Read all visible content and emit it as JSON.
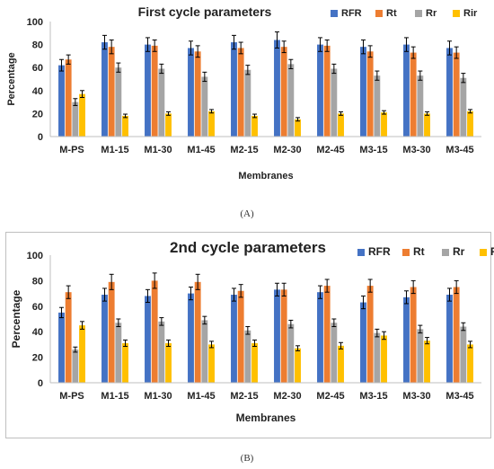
{
  "chart_data": [
    {
      "type": "bar",
      "title": "First cycle parameters",
      "xlabel": "Membranes",
      "ylabel": "Percentage",
      "ylim": [
        0,
        100
      ],
      "yticks": [
        0,
        20,
        40,
        60,
        80,
        100
      ],
      "grid": false,
      "legend": "top-right",
      "error_bars": true,
      "categories": [
        "M-PS",
        "M1-15",
        "M1-30",
        "M1-45",
        "M2-15",
        "M2-30",
        "M2-45",
        "M3-15",
        "M3-30",
        "M3-45"
      ],
      "series": [
        {
          "name": "RFR",
          "color": "#4472C4",
          "values": [
            62,
            82,
            80,
            77,
            82,
            84,
            80,
            78,
            80,
            77
          ],
          "errors": [
            5,
            6,
            6,
            6,
            6,
            7,
            6,
            6,
            6,
            6
          ]
        },
        {
          "name": "Rt",
          "color": "#ED7D31",
          "values": [
            67,
            78,
            79,
            74,
            77,
            78,
            79,
            74,
            73,
            73
          ],
          "errors": [
            4,
            6,
            5,
            5,
            5,
            5,
            5,
            5,
            5,
            5
          ]
        },
        {
          "name": "Rr",
          "color": "#A5A5A5",
          "values": [
            30,
            60,
            59,
            52,
            58,
            63,
            59,
            53,
            53,
            51
          ],
          "errors": [
            3,
            4,
            4,
            4,
            4,
            4,
            4,
            4,
            4,
            4
          ]
        },
        {
          "name": "Rir",
          "color": "#FFC000",
          "values": [
            37,
            18,
            20,
            22,
            18,
            15,
            20,
            21,
            20,
            22
          ],
          "errors": [
            3,
            1.5,
            1.5,
            1.5,
            1.5,
            1.5,
            1.5,
            1.5,
            1.5,
            1.5
          ]
        }
      ]
    },
    {
      "type": "bar",
      "title": "2nd cycle parameters",
      "xlabel": "Membranes",
      "ylabel": "Percentage",
      "ylim": [
        0,
        100
      ],
      "yticks": [
        0,
        20,
        40,
        60,
        80,
        100
      ],
      "grid": false,
      "legend": "top-right",
      "error_bars": true,
      "categories": [
        "M-PS",
        "M1-15",
        "M1-30",
        "M1-45",
        "M2-15",
        "M2-30",
        "M2-45",
        "M3-15",
        "M3-30",
        "M3-45"
      ],
      "series": [
        {
          "name": "RFR",
          "color": "#4472C4",
          "values": [
            55,
            69,
            68,
            70,
            69,
            73,
            71,
            63,
            67,
            69
          ],
          "errors": [
            4,
            5,
            5,
            5,
            5,
            5,
            5,
            5,
            5,
            5
          ]
        },
        {
          "name": "Rt",
          "color": "#ED7D31",
          "values": [
            71,
            79,
            80,
            79,
            72,
            73,
            76,
            76,
            75,
            75
          ],
          "errors": [
            5,
            6,
            6,
            6,
            5,
            5,
            5,
            5,
            5,
            5
          ]
        },
        {
          "name": "Rr",
          "color": "#A5A5A5",
          "values": [
            26,
            47,
            48,
            49,
            41,
            46,
            47,
            39,
            42,
            44
          ],
          "errors": [
            2,
            3,
            3,
            3,
            3,
            3,
            3,
            3,
            3,
            3
          ]
        },
        {
          "name": "Rir",
          "color": "#FFC000",
          "values": [
            45,
            31,
            31,
            30,
            31,
            27,
            29,
            37,
            33,
            30
          ],
          "errors": [
            3,
            2.5,
            2.5,
            2.5,
            2.5,
            2,
            2.5,
            3,
            2.5,
            2.5
          ]
        }
      ]
    }
  ],
  "captions": {
    "a": "(A)",
    "b": "(B)"
  }
}
